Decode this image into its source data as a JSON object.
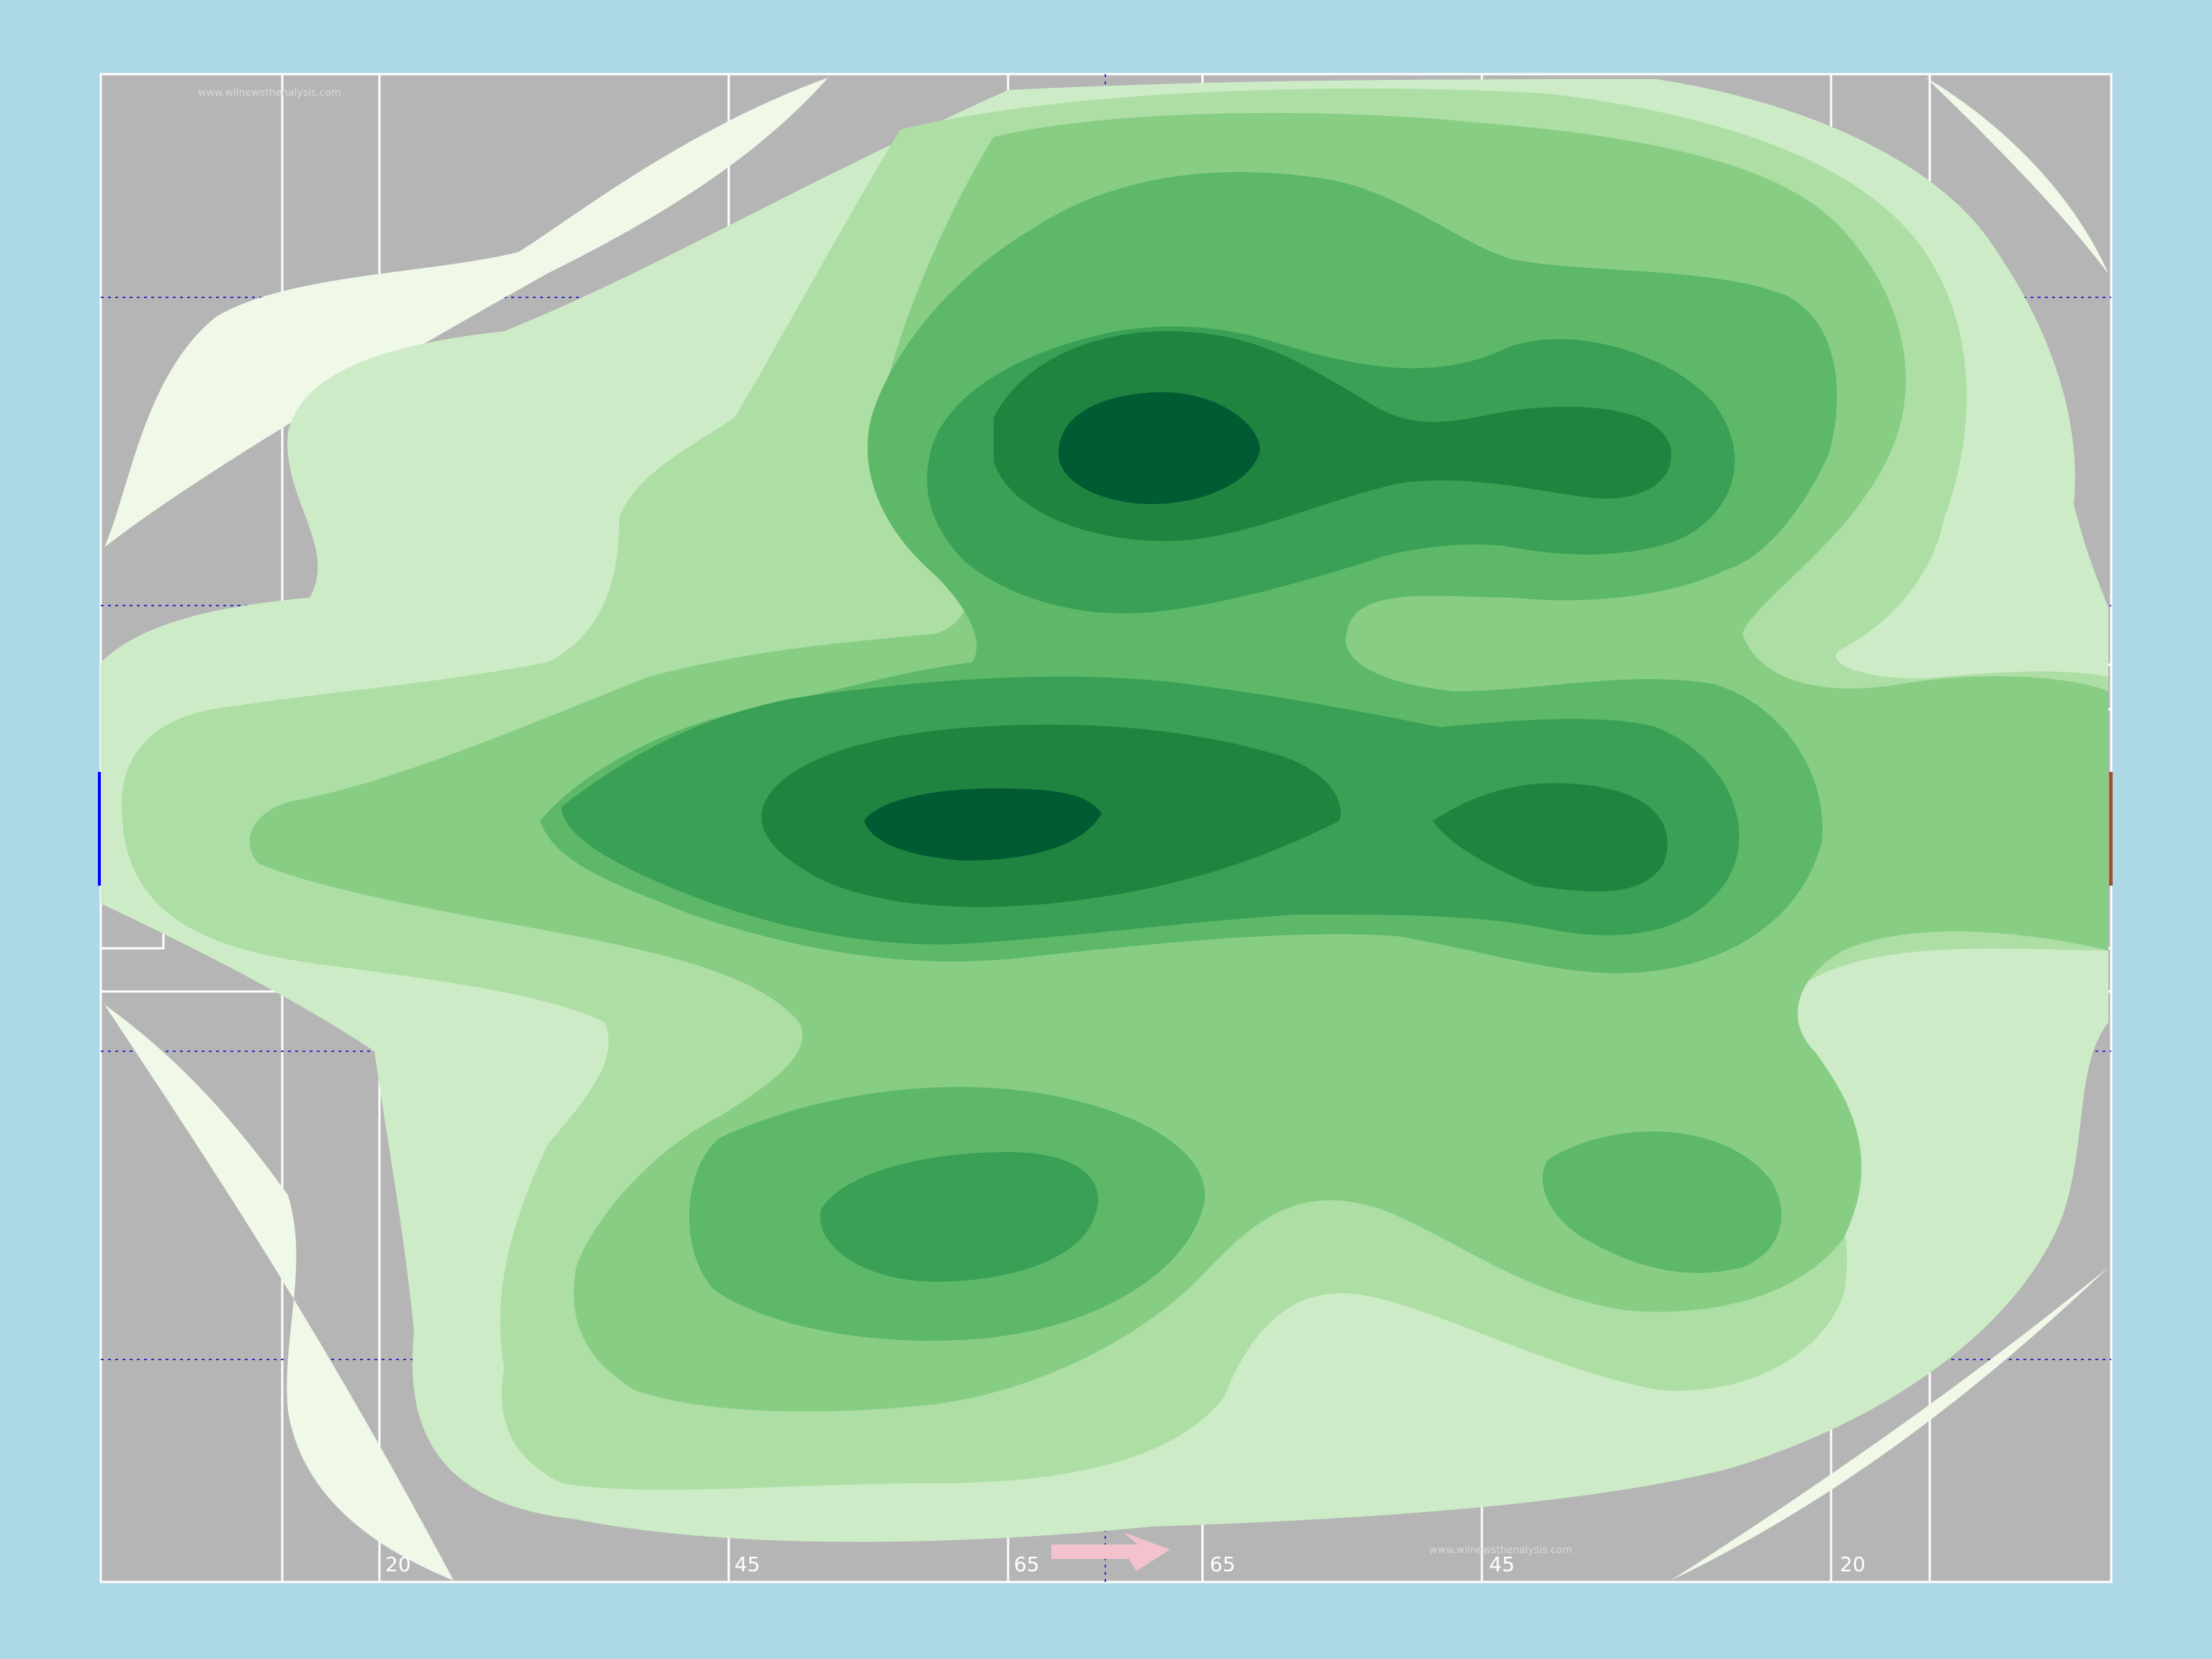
{
  "watermark": "www.wilnewsthenalysis.com",
  "yard_labels": [
    "20",
    "45",
    "65",
    "65",
    "45",
    "20"
  ],
  "colors": {
    "background": "#add8e6",
    "pitch": "#b5b5b5",
    "lines": "#ffffff",
    "grid": "#3030c0",
    "arrow": "#f4c2cc",
    "goal_left": "#0000ff",
    "goal_right": "#a0522d"
  },
  "chart_data": {
    "type": "heatmap",
    "title": "",
    "xlabel": "",
    "ylabel": "",
    "colormap": [
      "#f0f9e8",
      "#cdebc7",
      "#addfa5",
      "#88cd84",
      "#5db869",
      "#39a055",
      "#1e843f",
      "#005a32"
    ],
    "levels": 8,
    "attack_direction": "right",
    "hotspots": [
      {
        "name": "upper-centre",
        "x": 70,
        "y": 73,
        "level": 8
      },
      {
        "name": "upper-right",
        "x": 86,
        "y": 72,
        "level": 7
      },
      {
        "name": "central",
        "x": 60,
        "y": 50,
        "level": 8
      },
      {
        "name": "central-right",
        "x": 88,
        "y": 50,
        "level": 7
      },
      {
        "name": "lower-centre",
        "x": 59,
        "y": 25,
        "level": 6
      },
      {
        "name": "lower-right",
        "x": 96,
        "y": 24,
        "level": 5
      }
    ]
  }
}
